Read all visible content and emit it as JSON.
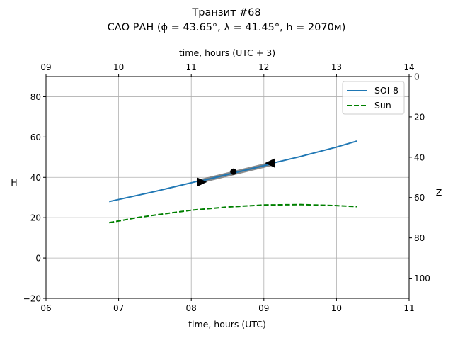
{
  "chart_data": {
    "type": "line",
    "title": "Транзит #68",
    "subtitle": "САО РАН (ϕ = 43.65°, λ = 41.45°, h = 2070м)",
    "xlabel": "time, hours (UTC)",
    "xlabel_top": "time, hours (UTC + 3)",
    "ylabel": "H",
    "ylabel_right": "Z",
    "xlim": [
      6,
      11
    ],
    "ylim": [
      -20,
      90
    ],
    "xticks": [
      "06",
      "07",
      "08",
      "09",
      "10",
      "11"
    ],
    "xticks_top": [
      "09",
      "10",
      "11",
      "12",
      "13",
      "14"
    ],
    "yticks": [
      -20,
      0,
      20,
      40,
      60,
      80
    ],
    "yticks_right": [
      0,
      20,
      40,
      60,
      80,
      100
    ],
    "grid": true,
    "legend_position": "top-right",
    "series": [
      {
        "name": "SOI-8",
        "color": "#1f77b4",
        "style": "solid",
        "x": [
          6.87,
          7.5,
          8.0,
          8.5,
          9.0,
          9.5,
          10.0,
          10.28
        ],
        "y": [
          28.0,
          33.0,
          37.3,
          41.7,
          46.0,
          50.3,
          55.0,
          58.0
        ]
      },
      {
        "name": "Sun",
        "color": "#008000",
        "style": "dashed",
        "x": [
          6.87,
          7.25,
          7.5,
          8.0,
          8.5,
          9.0,
          9.5,
          10.0,
          10.28
        ],
        "y": [
          17.5,
          20.0,
          21.3,
          23.7,
          25.3,
          26.3,
          26.5,
          26.0,
          25.5
        ]
      }
    ],
    "transit": {
      "color": "#808080",
      "start": {
        "x": 8.08,
        "y": 37.7
      },
      "middle": {
        "x": 8.58,
        "y": 42.8
      },
      "end": {
        "x": 9.15,
        "y": 47.1
      }
    }
  }
}
